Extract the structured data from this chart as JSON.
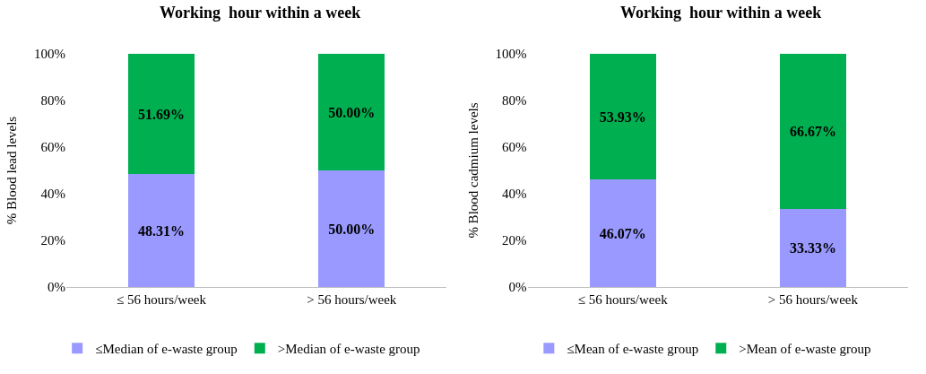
{
  "chart_data": [
    {
      "type": "bar",
      "title": "Working  hour within a week",
      "ylabel": "% Blood lead levels",
      "stacked": true,
      "categories": [
        "≤ 56 hours/week",
        "> 56 hours/week"
      ],
      "series": [
        {
          "name": "≤Median of e-waste group",
          "color": "#9999ff",
          "values": [
            48.31,
            50.0
          ],
          "value_labels": [
            "48.31%",
            "50.00%"
          ]
        },
        {
          "name": ">Median of e-waste group",
          "color": "#00b050",
          "values": [
            51.69,
            50.0
          ],
          "value_labels": [
            "51.69%",
            "50.00%"
          ]
        }
      ],
      "ylim": [
        0,
        100
      ],
      "yticks": [
        {
          "value": 0,
          "label": "0%"
        },
        {
          "value": 20,
          "label": "20%"
        },
        {
          "value": 40,
          "label": "40%"
        },
        {
          "value": 60,
          "label": "60%"
        },
        {
          "value": 80,
          "label": "80%"
        },
        {
          "value": 100,
          "label": "100%"
        }
      ],
      "legend": "bottom"
    },
    {
      "type": "bar",
      "title": "Working  hour within a week",
      "ylabel": "% Blood cadmium levels",
      "stacked": true,
      "categories": [
        "≤ 56 hours/week",
        "> 56 hours/week"
      ],
      "series": [
        {
          "name": "≤Mean of e-waste group",
          "color": "#9999ff",
          "values": [
            46.07,
            33.33
          ],
          "value_labels": [
            "46.07%",
            "33.33%"
          ]
        },
        {
          "name": ">Mean of e-waste group",
          "color": "#00b050",
          "values": [
            53.93,
            66.67
          ],
          "value_labels": [
            "53.93%",
            "66.67%"
          ]
        }
      ],
      "ylim": [
        0,
        100
      ],
      "yticks": [
        {
          "value": 0,
          "label": "0%"
        },
        {
          "value": 20,
          "label": "20%"
        },
        {
          "value": 40,
          "label": "40%"
        },
        {
          "value": 60,
          "label": "60%"
        },
        {
          "value": 80,
          "label": "80%"
        },
        {
          "value": 100,
          "label": "100%"
        }
      ],
      "legend": "bottom"
    }
  ]
}
